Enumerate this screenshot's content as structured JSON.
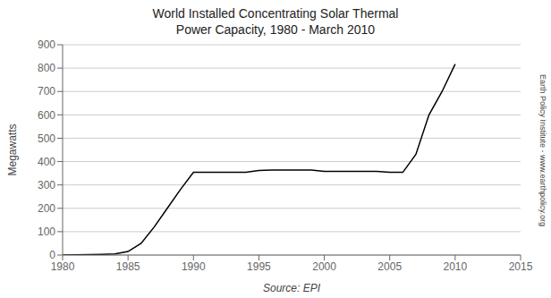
{
  "chart_data": {
    "type": "line",
    "title": "World Installed Concentrating Solar Thermal\nPower Capacity, 1980 - March 2010",
    "xlabel": "Source: EPI",
    "ylabel": "Megawatts",
    "annotations": [
      "Earth Policy Institute - www.earthpolicy.org"
    ],
    "x": [
      1980,
      1981,
      1982,
      1983,
      1984,
      1985,
      1986,
      1987,
      1988,
      1989,
      1990,
      1991,
      1992,
      1993,
      1994,
      1995,
      1996,
      1997,
      1998,
      1999,
      2000,
      2001,
      2002,
      2003,
      2004,
      2005,
      2006,
      2007,
      2008,
      2009,
      2010
    ],
    "values": [
      0,
      1,
      2,
      3,
      5,
      15,
      50,
      120,
      200,
      280,
      354,
      354,
      354,
      354,
      354,
      362,
      364,
      364,
      364,
      364,
      358,
      358,
      358,
      358,
      358,
      354,
      354,
      431,
      600,
      700,
      817
    ],
    "color": "black",
    "xlim": [
      1980,
      2015
    ],
    "ylim": [
      0,
      900
    ],
    "xticks": [
      1980,
      1985,
      1990,
      1995,
      2000,
      2005,
      2010,
      2015
    ],
    "yticks": [
      0,
      100,
      200,
      300,
      400,
      500,
      600,
      700,
      800,
      900
    ],
    "grid": true
  }
}
